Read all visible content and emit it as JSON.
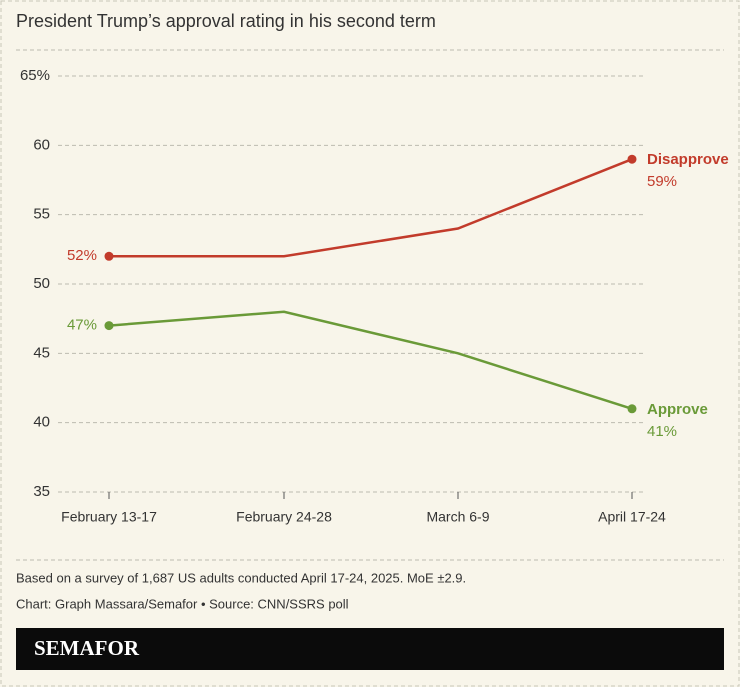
{
  "chart_data": {
    "type": "line",
    "title": "President Trump’s approval rating in his second term",
    "categories": [
      "February 13-17",
      "February 24-28",
      "March 6-9",
      "April 17-24"
    ],
    "series": [
      {
        "name": "Disapprove",
        "color": "#c23b2b",
        "values": [
          52,
          52,
          54,
          59
        ],
        "value_labels": [
          "52%",
          null,
          null,
          "59%"
        ]
      },
      {
        "name": "Approve",
        "color": "#6a9a38",
        "values": [
          47,
          48,
          45,
          41
        ],
        "value_labels": [
          "47%",
          null,
          null,
          "41%"
        ]
      }
    ],
    "ylim": [
      35,
      65
    ],
    "yticks": [
      35,
      40,
      45,
      50,
      55,
      60,
      {
        "value": 65,
        "label": "65%"
      }
    ],
    "grid": true,
    "notes": [
      "Based on a survey of 1,687 US adults conducted April 17-24, 2025. MoE ±2.9.",
      "Chart: Graph Massara/Semafor • Source: CNN/SSRS poll"
    ],
    "brand": "SEMAFOR"
  }
}
